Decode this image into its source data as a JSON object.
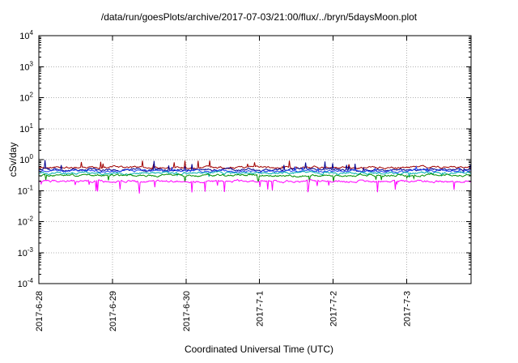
{
  "chart_data": {
    "type": "line",
    "title": "/data/run/goesPlots/archive/2017-07-03/21:00/flux/../bryn/5daysMoon.plot",
    "xlabel": "Coordinated Universal Time (UTC)",
    "ylabel": "cSv/day",
    "yscale": "log",
    "ylim": [
      0.0001,
      10000
    ],
    "y_tick_exponents": [
      4,
      3,
      2,
      1,
      0,
      -1,
      -2,
      -3,
      -4
    ],
    "x_ticks": [
      "2017-6-28",
      "2017-6-29",
      "2017-6-30",
      "2017-7-1",
      "2017-7-2",
      "2017-7-3"
    ],
    "x_range_days": 5.875,
    "grid": true,
    "legend": "none",
    "points_per_series": 560,
    "series": [
      {
        "name": "dark-red",
        "color": "#a00000",
        "base": 0.56,
        "jitter": 0.045,
        "spike_dir": 1,
        "spike_prob": 0.02,
        "spike_max": 0.22
      },
      {
        "name": "navy-blue",
        "color": "#000090",
        "base": 0.47,
        "jitter": 0.055,
        "spike_dir": 1,
        "spike_prob": 0.025,
        "spike_max": 0.28
      },
      {
        "name": "blue",
        "color": "#2244ee",
        "base": 0.43,
        "jitter": 0.05,
        "spike_dir": 1,
        "spike_prob": 0.02,
        "spike_max": 0.2
      },
      {
        "name": "cyan",
        "color": "#00b0b0",
        "base": 0.37,
        "jitter": 0.05,
        "spike_dir": -1,
        "spike_prob": 0.015,
        "spike_max": 0.15
      },
      {
        "name": "green",
        "color": "#009000",
        "base": 0.31,
        "jitter": 0.045,
        "spike_dir": -1,
        "spike_prob": 0.015,
        "spike_max": 0.2
      },
      {
        "name": "magenta",
        "color": "#ff00ff",
        "base": 0.2,
        "jitter": 0.05,
        "spike_dir": -1,
        "spike_prob": 0.04,
        "spike_max": 0.38
      }
    ],
    "plot_colors": {
      "axis": "#000000",
      "grid": "#b0b0b0",
      "background": "#ffffff"
    }
  }
}
